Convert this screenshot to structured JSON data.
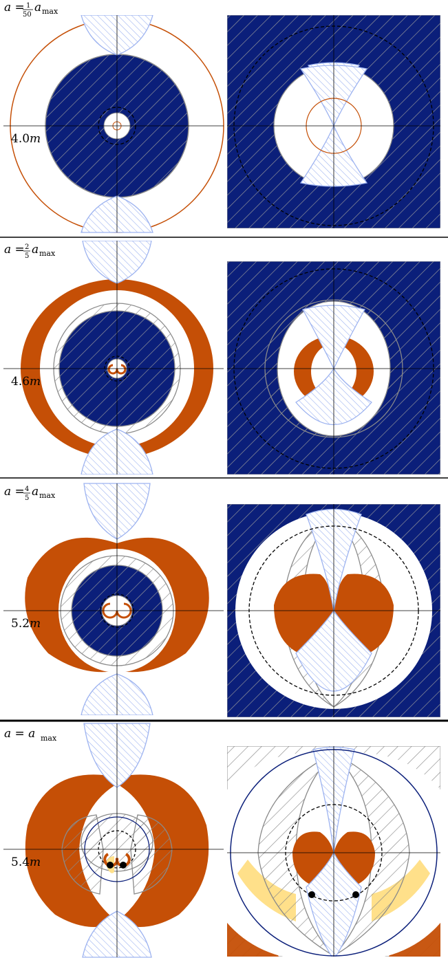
{
  "colors": {
    "navy": "#0b1f7a",
    "orange": "#c54f06",
    "yellow": "#ffe08a",
    "light_blue": "#9db3f0",
    "gray": "#8a8a8a",
    "black": "#000000"
  },
  "panels": [
    {
      "label_prefix": "a = ",
      "label_num": "1",
      "label_den": "50",
      "label_suffix": "a",
      "label_sub": "max",
      "radius_label": "4.0",
      "radius_unit": "m"
    },
    {
      "label_prefix": "a = ",
      "label_num": "2",
      "label_den": "5",
      "label_suffix": "a",
      "label_sub": "max",
      "radius_label": "4.6",
      "radius_unit": "m"
    },
    {
      "label_prefix": "a = ",
      "label_num": "4",
      "label_den": "5",
      "label_suffix": "a",
      "label_sub": "max",
      "radius_label": "5.2",
      "radius_unit": "m"
    },
    {
      "label_prefix": "a = a",
      "label_num": "",
      "label_den": "",
      "label_suffix": "",
      "label_sub": "max",
      "radius_label": "5.4",
      "radius_unit": "m"
    }
  ]
}
